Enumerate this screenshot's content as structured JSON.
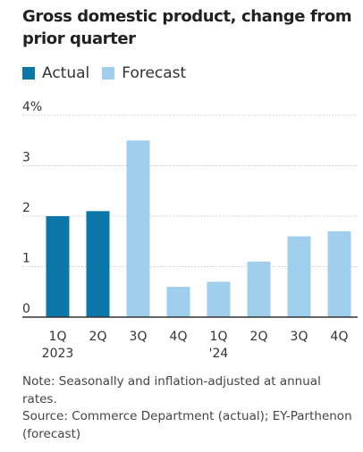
{
  "chart_data": {
    "type": "bar",
    "title": "Gross domestic product, change from prior quarter",
    "xlabel": "",
    "ylabel": "",
    "ylim": [
      0,
      4
    ],
    "yticks": [
      "4%",
      "3",
      "2",
      "1",
      "0"
    ],
    "categories": [
      "1Q\n2023",
      "2Q",
      "3Q",
      "4Q",
      "1Q\n'24",
      "2Q",
      "3Q",
      "4Q"
    ],
    "x_labels": [
      {
        "line1": "1Q",
        "line2": "2023"
      },
      {
        "line1": "2Q",
        "line2": ""
      },
      {
        "line1": "3Q",
        "line2": ""
      },
      {
        "line1": "4Q",
        "line2": ""
      },
      {
        "line1": "1Q",
        "line2": "'24"
      },
      {
        "line1": "2Q",
        "line2": ""
      },
      {
        "line1": "3Q",
        "line2": ""
      },
      {
        "line1": "4Q",
        "line2": ""
      }
    ],
    "values": [
      2.0,
      2.1,
      3.5,
      0.6,
      0.7,
      1.1,
      1.6,
      1.7
    ],
    "kinds": [
      "actual",
      "actual",
      "forecast",
      "forecast",
      "forecast",
      "forecast",
      "forecast",
      "forecast"
    ],
    "legend": [
      {
        "label": "Actual",
        "color": "#0b77a8"
      },
      {
        "label": "Forecast",
        "color": "#9fcfed"
      }
    ],
    "grid": true,
    "legend_position": "top-left"
  },
  "notes": {
    "note": "Note: Seasonally and inflation-adjusted at annual rates.",
    "source": "Source: Commerce Department (actual); EY-Parthenon (forecast)"
  },
  "colors": {
    "actual": "#0b77a8",
    "forecast": "#9fcfed",
    "grid": "#c8c8c8",
    "baseline": "#333333"
  }
}
